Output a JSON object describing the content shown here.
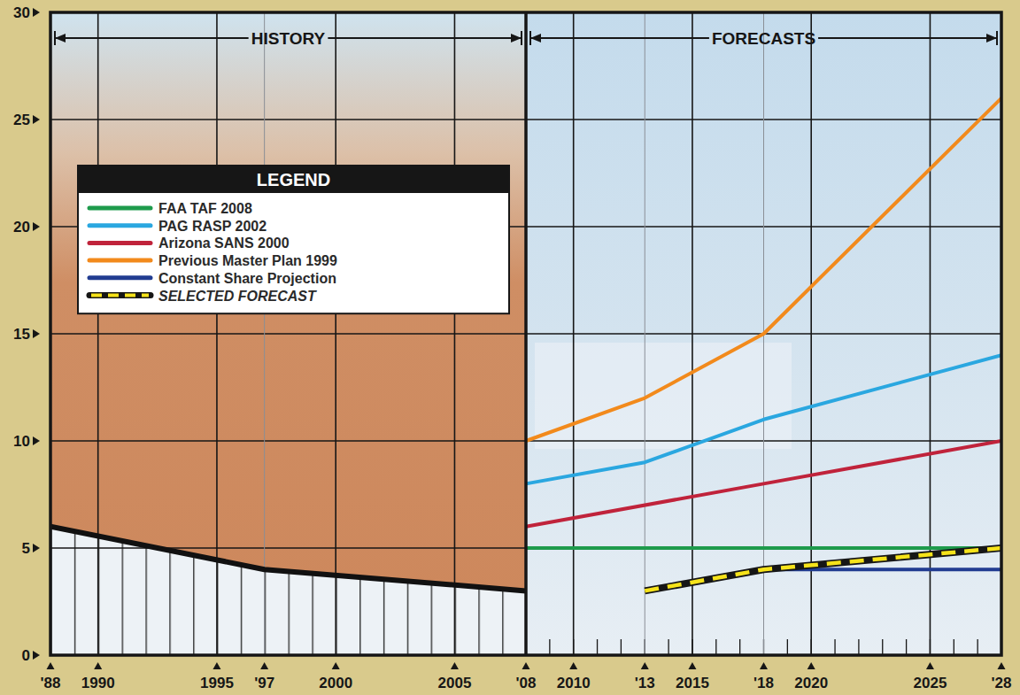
{
  "chart_data": {
    "type": "line",
    "xlim": [
      1988,
      2028
    ],
    "ylim": [
      0,
      30
    ],
    "xticks": [
      {
        "value": 1988,
        "label": "'88"
      },
      1990,
      1995,
      {
        "value": 1997,
        "label": "'97"
      },
      2000,
      2005,
      {
        "value": 2008,
        "label": "'08"
      },
      2010,
      {
        "value": 2013,
        "label": "'13"
      },
      2015,
      {
        "value": 2018,
        "label": "'18"
      },
      2020,
      2025,
      {
        "value": 2028,
        "label": "'28"
      }
    ],
    "yticks": [
      0,
      5,
      10,
      15,
      20,
      25,
      30
    ],
    "grid": true,
    "legend": "upper left",
    "legend_title": "LEGEND",
    "annotations": [
      {
        "text": "HISTORY",
        "x": [
          1988,
          2008
        ]
      },
      {
        "text": "FORECASTS",
        "x": [
          2008,
          2028
        ]
      }
    ],
    "series": [
      {
        "type": "area",
        "color": "#111111",
        "x": [
          1988,
          1997,
          2008
        ],
        "values": [
          6,
          4,
          3
        ]
      },
      {
        "name": "FAA TAF 2008",
        "type": "line",
        "color": "#1e9b4c",
        "x": [
          2008,
          2028
        ],
        "values": [
          5,
          5
        ]
      },
      {
        "name": "PAG RASP 2002",
        "type": "line",
        "color": "#2aa7e0",
        "x": [
          2008,
          2013,
          2018,
          2028
        ],
        "values": [
          8,
          9,
          11,
          14
        ]
      },
      {
        "name": "Arizona SANS 2000",
        "type": "line",
        "color": "#c0233b",
        "x": [
          2008,
          2018,
          2028
        ],
        "values": [
          6,
          8,
          10
        ]
      },
      {
        "name": "Previous Master Plan 1999",
        "type": "line",
        "color": "#f28a1c",
        "x": [
          2008,
          2013,
          2018,
          2028
        ],
        "values": [
          10,
          12,
          15,
          26
        ]
      },
      {
        "name": "Constant Share Projection",
        "type": "line",
        "color": "#213c91",
        "x": [
          2013,
          2018,
          2028
        ],
        "values": [
          3,
          4,
          4
        ]
      },
      {
        "name": "SELECTED FORECAST",
        "type": "line",
        "line_style": "dashed",
        "color": "#f6e31a",
        "x": [
          2013,
          2018,
          2028
        ],
        "values": [
          3,
          4,
          5
        ]
      }
    ]
  }
}
